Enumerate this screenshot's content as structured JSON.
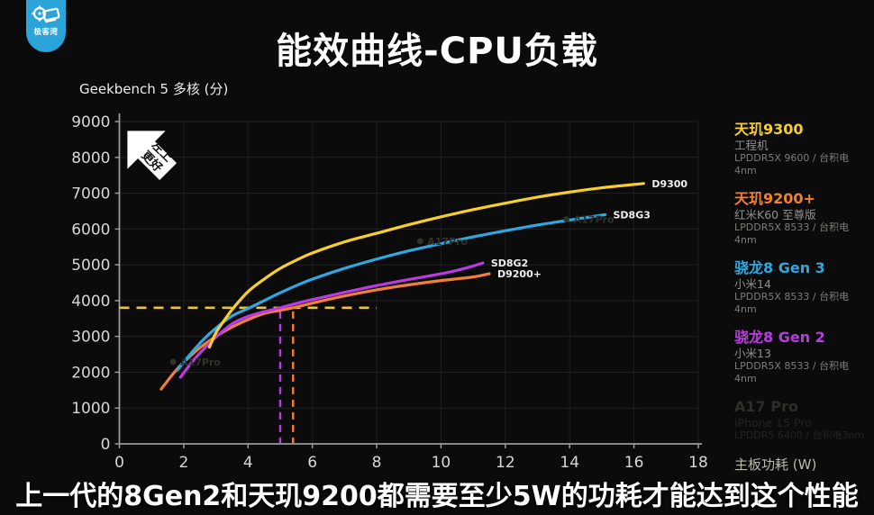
{
  "logo": {
    "brand": "极客湾"
  },
  "header": {
    "title": "能效曲线-CPU负载"
  },
  "chart_data": {
    "type": "line",
    "title": "能效曲线-CPU负载",
    "ylabel": "Geekbench 5 多核 (分)",
    "xlabel": "主板功耗 (W)",
    "xlim": [
      0,
      18
    ],
    "ylim": [
      0,
      9000
    ],
    "xticks": [
      0,
      2,
      4,
      6,
      8,
      10,
      12,
      14,
      16,
      18
    ],
    "yticks": [
      0,
      1000,
      2000,
      3000,
      4000,
      5000,
      6000,
      7000,
      8000,
      9000
    ],
    "grid": true,
    "badge_lines": [
      "左上",
      "更好"
    ],
    "series": [
      {
        "label": "D9200+",
        "color": "#f08038",
        "points": [
          [
            1.3,
            1530
          ],
          [
            1.7,
            1990
          ],
          [
            2,
            2280
          ],
          [
            2.5,
            2680
          ],
          [
            3,
            3000
          ],
          [
            3.5,
            3260
          ],
          [
            4,
            3470
          ],
          [
            4.5,
            3640
          ],
          [
            5,
            3730
          ],
          [
            5.4,
            3800
          ],
          [
            6,
            3930
          ],
          [
            7,
            4130
          ],
          [
            8,
            4300
          ],
          [
            9,
            4440
          ],
          [
            10,
            4560
          ],
          [
            11,
            4660
          ],
          [
            11.5,
            4750
          ]
        ]
      },
      {
        "label": "SD8G2",
        "color": "#b83ce0",
        "points": [
          [
            1.9,
            1860
          ],
          [
            2.3,
            2330
          ],
          [
            2.7,
            2720
          ],
          [
            3,
            2980
          ],
          [
            3.5,
            3350
          ],
          [
            4,
            3560
          ],
          [
            4.5,
            3690
          ],
          [
            5,
            3800
          ],
          [
            5.5,
            3920
          ],
          [
            6,
            4030
          ],
          [
            7,
            4230
          ],
          [
            8,
            4420
          ],
          [
            9,
            4590
          ],
          [
            10,
            4750
          ],
          [
            10.7,
            4890
          ],
          [
            11.3,
            5050
          ]
        ]
      },
      {
        "label": "SD8G3",
        "color": "#2fa8e1",
        "points": [
          [
            1.8,
            2060
          ],
          [
            2.2,
            2500
          ],
          [
            2.6,
            2900
          ],
          [
            3,
            3230
          ],
          [
            3.5,
            3570
          ],
          [
            4.05,
            3800
          ],
          [
            4.5,
            4000
          ],
          [
            5,
            4220
          ],
          [
            5.5,
            4420
          ],
          [
            6,
            4600
          ],
          [
            7,
            4900
          ],
          [
            8,
            5160
          ],
          [
            9,
            5390
          ],
          [
            10,
            5590
          ],
          [
            11,
            5780
          ],
          [
            12,
            5950
          ],
          [
            13,
            6110
          ],
          [
            14,
            6250
          ],
          [
            15.1,
            6400
          ]
        ]
      },
      {
        "label": "D9300",
        "color": "#f6cf2b",
        "points": [
          [
            2.8,
            2700
          ],
          [
            3,
            3100
          ],
          [
            3.3,
            3500
          ],
          [
            3.55,
            3800
          ],
          [
            4,
            4250
          ],
          [
            4.5,
            4600
          ],
          [
            5,
            4900
          ],
          [
            5.5,
            5130
          ],
          [
            6,
            5330
          ],
          [
            7,
            5640
          ],
          [
            8,
            5880
          ],
          [
            9,
            6120
          ],
          [
            10,
            6340
          ],
          [
            11,
            6540
          ],
          [
            12,
            6720
          ],
          [
            13,
            6890
          ],
          [
            14,
            7030
          ],
          [
            15,
            7150
          ],
          [
            16.3,
            7270
          ]
        ]
      }
    ],
    "dim_markers": {
      "color": "#31312c",
      "points": [
        {
          "x": 1.67,
          "y": 2290,
          "label": "A17Pro"
        },
        {
          "x": 9.35,
          "y": 5660,
          "label": "A17Pro"
        },
        {
          "x": 13.9,
          "y": 6270,
          "label": "A17Pro"
        }
      ]
    },
    "reference_lines": {
      "horizontal": {
        "value": 3800,
        "x_start": 0,
        "x_end": 8,
        "color": "#e8c63a"
      },
      "verticals": [
        {
          "x": 5.0,
          "color": "#b83ce0"
        },
        {
          "x": 5.4,
          "color": "#f08038"
        }
      ]
    }
  },
  "legend": {
    "items": [
      {
        "name": "天玑9300",
        "color": "#f6cf2b",
        "device": "工程机",
        "spec": "LPDDR5X 9600 / 台积电4nm"
      },
      {
        "name": "天玑9200+",
        "color": "#f08038",
        "device": "红米K60 至尊版",
        "spec": "LPDDR5X 8533 / 台积电4nm"
      },
      {
        "name": "骁龙8 Gen 3",
        "color": "#2fa8e1",
        "device": "小米14",
        "spec": "LPDDR5X 8533 / 台积电4nm"
      },
      {
        "name": "骁龙8 Gen 2",
        "color": "#b83ce0",
        "device": "小米13",
        "spec": "LPDDR5X 8533 / 台积电4nm"
      },
      {
        "name": "A17 Pro",
        "color": "#2e2d29",
        "device": "iPhone 15 Pro",
        "spec": "LPDDR5 6400 / 台积电3nm"
      }
    ]
  },
  "caption": {
    "text": "上一代的8Gen2和天玑9200都需要至少5W的功耗才能达到这个性能"
  }
}
